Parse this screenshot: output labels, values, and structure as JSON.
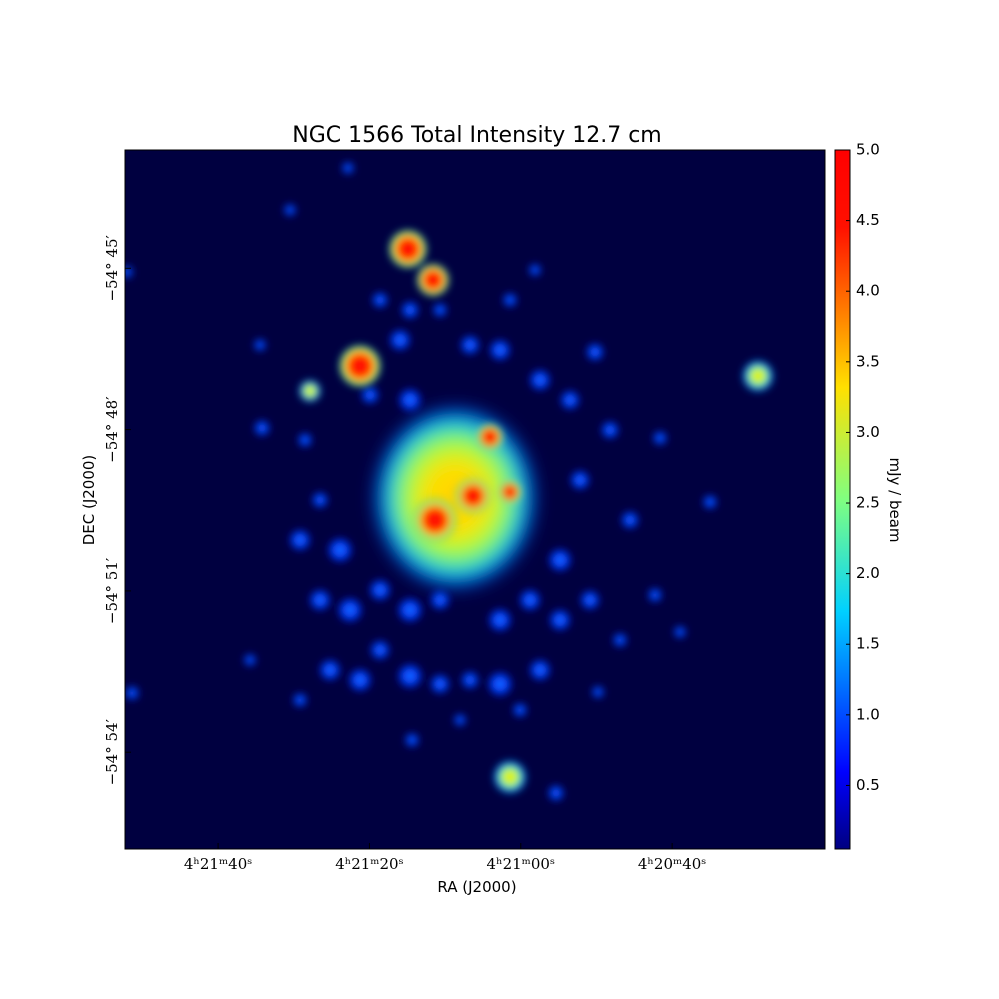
{
  "chart_data": {
    "type": "image",
    "title": "NGC 1566 Total Intensity 12.7 cm",
    "xlabel": "RA (J2000)",
    "ylabel": "DEC (J2000)",
    "colorbar_label": "mJy / beam",
    "xlim": [
      15712.3,
      15619.8
    ],
    "xticks": [
      {
        "value": 15700,
        "label": "4ʰ21ᵐ40ˢ"
      },
      {
        "value": 15680,
        "label": "4ʰ21ᵐ20ˢ"
      },
      {
        "value": 15660,
        "label": "4ʰ21ᵐ00ˢ"
      },
      {
        "value": 15640,
        "label": "4ʰ20ᵐ40ˢ"
      }
    ],
    "ylim": [
      -3295.8,
      -3282.8
    ],
    "yticks": [
      {
        "value": -3285,
        "label": "−54° 45′"
      },
      {
        "value": -3288,
        "label": "−54° 48′"
      },
      {
        "value": -3291,
        "label": "−54° 51′"
      },
      {
        "value": -3294,
        "label": "−54° 54′"
      }
    ],
    "clim": [
      0.05,
      5.0
    ],
    "cticks": [
      0.5,
      {
        "value": 1.0,
        "label": "1.0"
      },
      1.5,
      {
        "value": 2.0,
        "label": "2.0"
      },
      2.5,
      {
        "value": 3.0,
        "label": "3.0"
      },
      3.5,
      {
        "value": 4.0,
        "label": "4.0"
      },
      4.5,
      {
        "value": 5.0,
        "label": "5.0"
      }
    ]
  }
}
